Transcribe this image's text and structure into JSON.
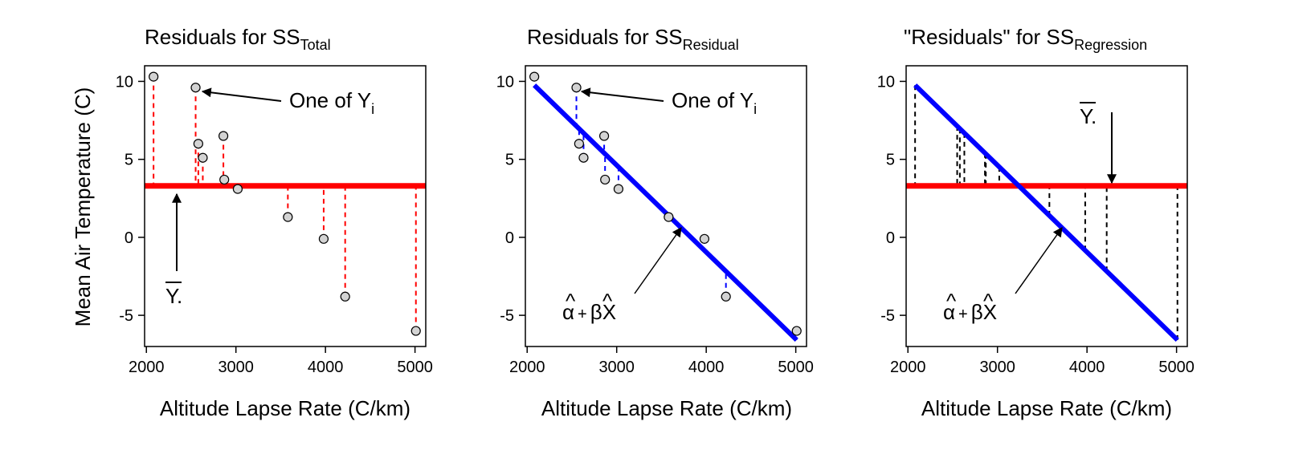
{
  "figure": {
    "ylabel": "Mean Air Temperature (C)"
  },
  "panels": [
    {
      "id": "total",
      "title_main": "Residuals for SS",
      "title_sub": "Total",
      "xlabel": "Altitude Lapse Rate (C/km)",
      "annotations": {
        "one_of_main": "One of Y",
        "one_of_sub": "i",
        "ybar": "Y."
      }
    },
    {
      "id": "residual",
      "title_main": "Residuals for SS",
      "title_sub": "Residual",
      "xlabel": "Altitude Lapse Rate (C/km)",
      "annotations": {
        "one_of_main": "One of Y",
        "one_of_sub": "i",
        "fit_alpha": "α",
        "fit_plus": "+",
        "fit_beta": "β",
        "fit_x": "X",
        "hat": "^"
      }
    },
    {
      "id": "regression",
      "title_main": "\"Residuals\" for SS",
      "title_sub": "Regression",
      "xlabel": "Altitude Lapse Rate (C/km)",
      "annotations": {
        "ybar": "Y.",
        "fit_alpha": "α",
        "fit_plus": "+",
        "fit_beta": "β",
        "fit_x": "X",
        "hat": "^"
      }
    }
  ],
  "chart_data": {
    "type": "scatter",
    "x": [
      2080,
      2550,
      2580,
      2630,
      2860,
      2870,
      3020,
      3580,
      3980,
      4220,
      5010
    ],
    "y": [
      10.3,
      9.6,
      6.0,
      5.1,
      6.5,
      3.7,
      3.1,
      1.3,
      -0.1,
      -3.8,
      -6.0
    ],
    "mean_y": 3.3,
    "fit": {
      "intercept": 21.35,
      "slope": -0.005575
    },
    "xlim": [
      1980,
      5120
    ],
    "ylim": [
      -7.0,
      11.0
    ],
    "xticks": [
      2000,
      3000,
      4000,
      5000
    ],
    "yticks": [
      -5,
      0,
      5,
      10
    ],
    "colors": {
      "mean_line": "#ff0000",
      "fit_line": "#0000ff",
      "total_dash": "#ff0000",
      "residual_dash": "#0000ff",
      "regression_dash": "#000000",
      "point_fill": "#d3d3d3"
    }
  }
}
